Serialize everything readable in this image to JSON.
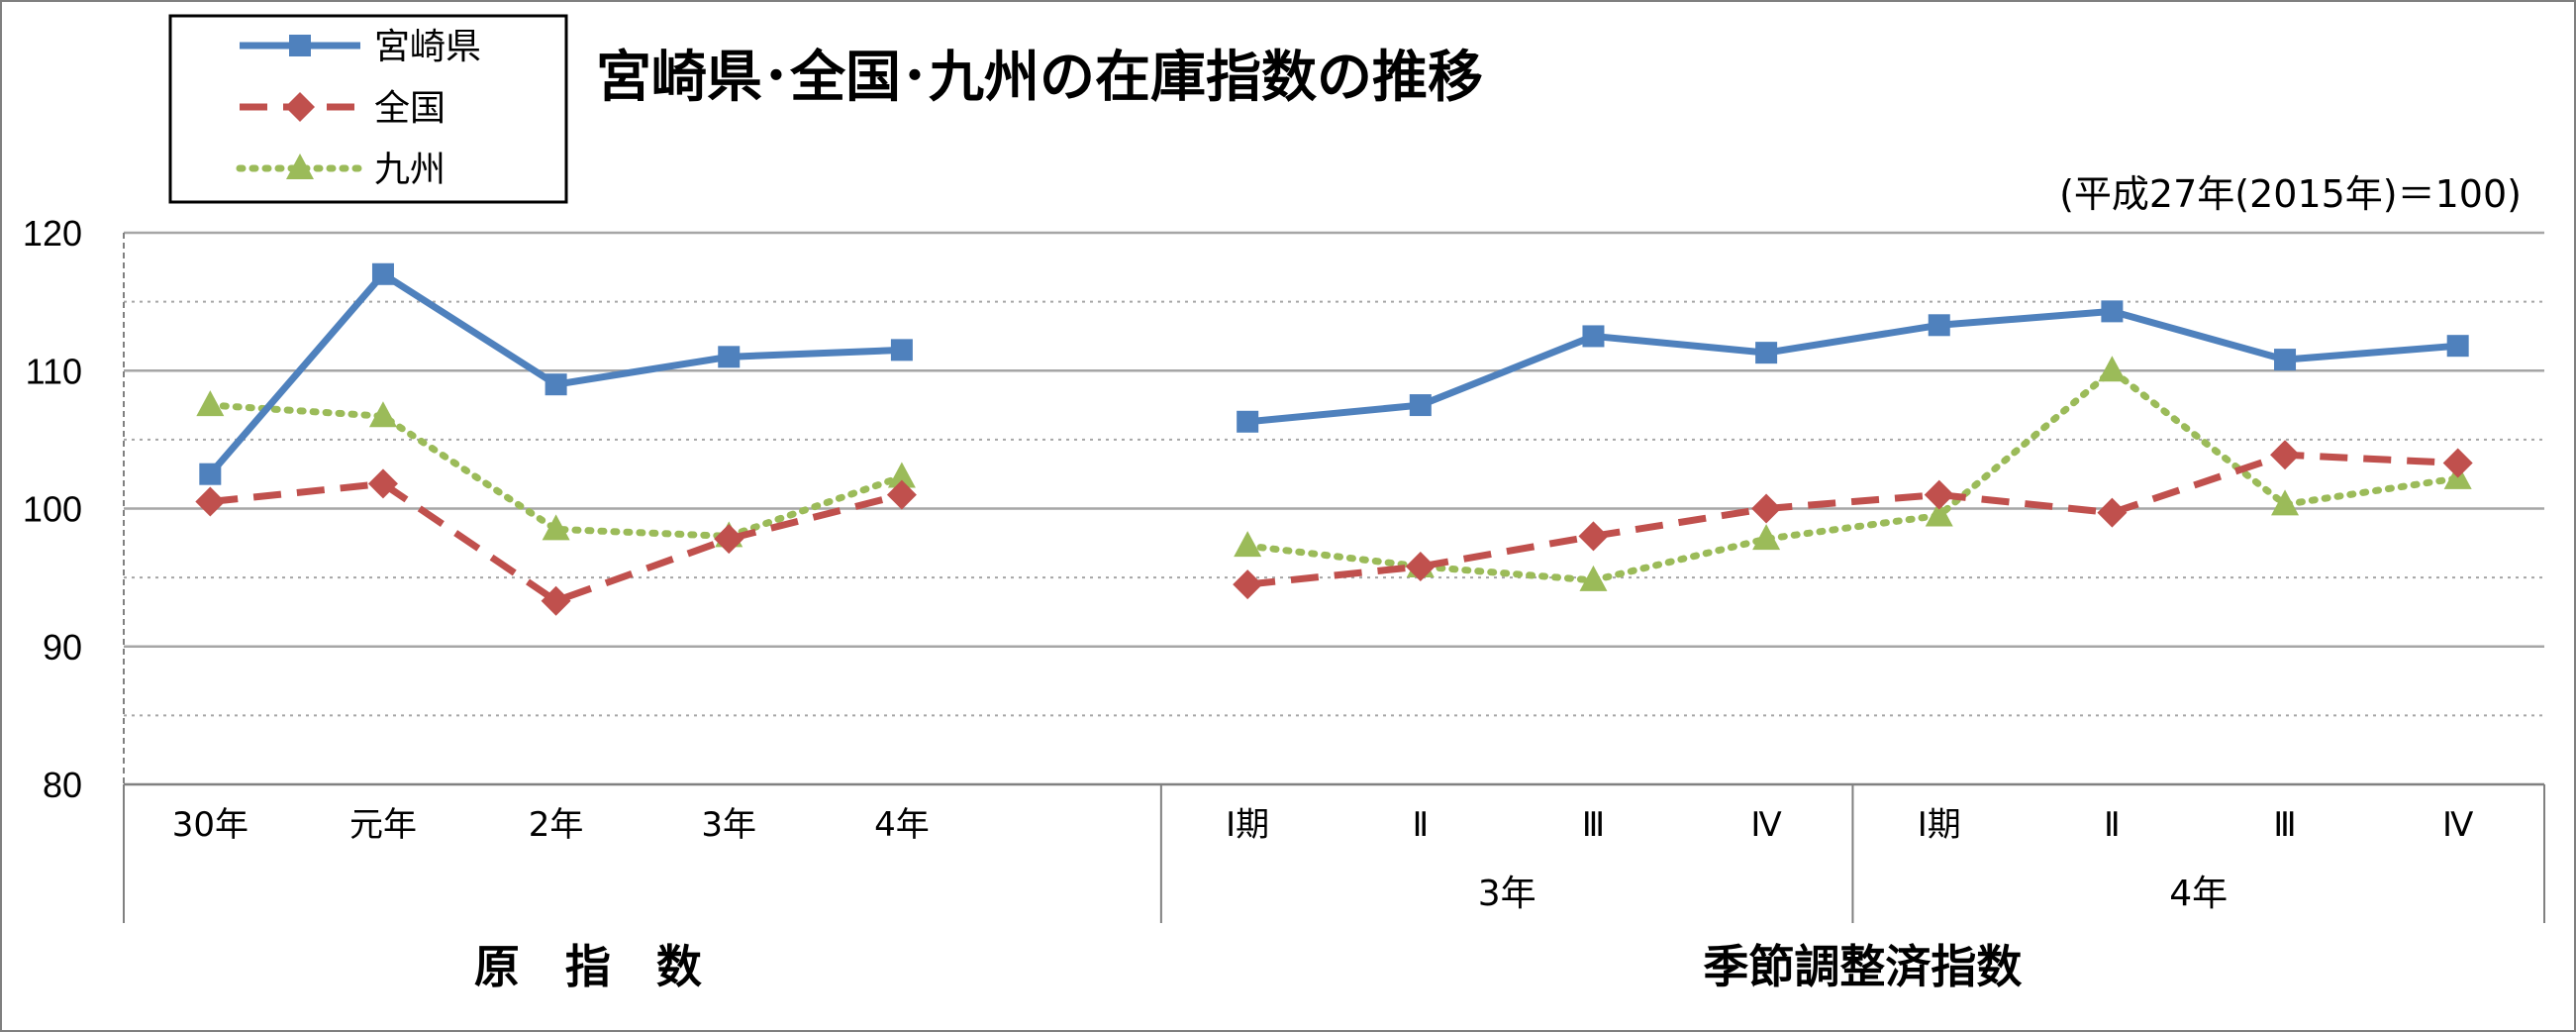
{
  "chart_data": {
    "type": "line",
    "title": "宮崎県･全国･九州の在庫指数の推移",
    "base_note": "(平成27年(2015年)＝100)",
    "ylim": [
      80,
      120
    ],
    "yticks": [
      80,
      90,
      100,
      110,
      120
    ],
    "categories": [
      "30年",
      "元年",
      "2年",
      "3年",
      "4年",
      "",
      "Ⅰ期",
      "Ⅱ",
      "Ⅲ",
      "Ⅳ",
      "Ⅰ期",
      "Ⅱ",
      "Ⅲ",
      "Ⅳ"
    ],
    "groups": [
      {
        "label": "3年",
        "start": 6,
        "end": 9
      },
      {
        "label": "4年",
        "start": 10,
        "end": 13
      }
    ],
    "sections": [
      {
        "label": "原　指　数",
        "start": 0,
        "end": 5
      },
      {
        "label": "季節調整済指数",
        "start": 6,
        "end": 13
      }
    ],
    "series": [
      {
        "name": "宮崎県",
        "color": "#4f81bd",
        "marker": "square",
        "dash": "solid",
        "values": [
          102.5,
          117.0,
          109.0,
          111.0,
          111.5,
          null,
          106.3,
          107.5,
          112.5,
          111.3,
          113.3,
          114.3,
          110.8,
          111.8
        ]
      },
      {
        "name": "全国",
        "color": "#c0504d",
        "marker": "diamond",
        "dash": "dashed",
        "values": [
          100.5,
          101.8,
          93.3,
          97.8,
          101.0,
          null,
          94.5,
          95.8,
          98.0,
          100.0,
          101.0,
          99.7,
          103.9,
          103.3
        ]
      },
      {
        "name": "九州",
        "color": "#9bbb59",
        "marker": "triangle",
        "dash": "dotted",
        "values": [
          107.5,
          106.7,
          98.5,
          98.0,
          102.3,
          null,
          97.3,
          95.8,
          94.8,
          97.8,
          99.5,
          110.0,
          100.3,
          102.2
        ]
      }
    ]
  }
}
